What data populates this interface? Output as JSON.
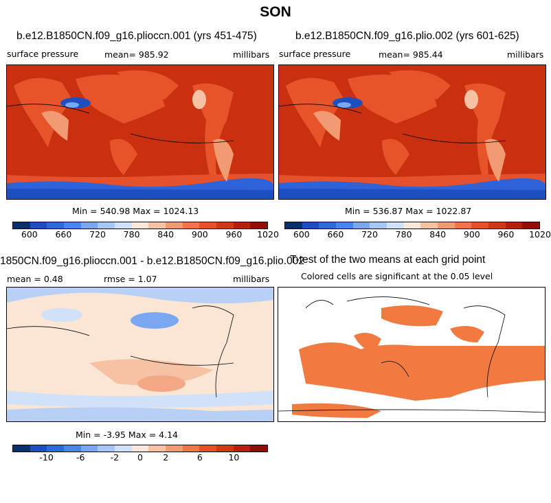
{
  "title": "SON",
  "panels": {
    "p1": {
      "title": "b.e12.B1850CN.f09_g16.plioccn.001 (yrs 451-475)",
      "left": "surface pressure",
      "center": "mean= 985.92",
      "right": "millibars",
      "stats": "Min = 540.98 Max = 1024.13"
    },
    "p2": {
      "title": "b.e12.B1850CN.f09_g16.plio.002 (yrs 601-625)",
      "left": "surface pressure",
      "center": "mean= 985.44",
      "right": "millibars",
      "stats": "Min = 536.87 Max = 1022.87"
    },
    "p3": {
      "title": "1850CN.f09_g16.plioccn.001 - b.e12.B1850CN.f09_g16.plio.002",
      "left": "mean =    0.48",
      "center": "rmse =    1.07",
      "right": "millibars",
      "stats": "Min =  -3.95 Max =   4.14"
    },
    "p4": {
      "title": "T-test of the two means at each grid point",
      "subtitle": "Colored cells are significant at the 0.05 level"
    }
  },
  "colorbar_abs": {
    "colors": [
      "#08306b",
      "#1d4fc0",
      "#2f6bd8",
      "#4a86e8",
      "#7aa8f0",
      "#a7c7f7",
      "#d0e1fa",
      "#fbe8dc",
      "#f7c1a3",
      "#f29a72",
      "#ee7649",
      "#e55325",
      "#cf3a14",
      "#b4220d",
      "#8c1006"
    ],
    "ticks": [
      "600",
      "660",
      "720",
      "780",
      "840",
      "900",
      "960",
      "1020"
    ]
  },
  "colorbar_diff": {
    "colors": [
      "#08306b",
      "#1d4fc0",
      "#2f6bd8",
      "#4a86e8",
      "#7aa8f0",
      "#a7c7f7",
      "#d0e1fa",
      "#fbe8dc",
      "#f7c1a3",
      "#f29a72",
      "#ee7649",
      "#e55325",
      "#cf3a14",
      "#b4220d",
      "#8c1006"
    ],
    "ticks": [
      "-10",
      "-6",
      "-2",
      "0",
      "2",
      "6",
      "10"
    ]
  },
  "colors": {
    "ocean_pressure": "#c8300f",
    "land_pressure": "#e8542a",
    "antarctic": "#2d62d8",
    "tibet": "#1d4fc0",
    "diff_base": "#fbe6d6",
    "diff_pos": "#f3a785",
    "diff_neg": "#b8d0f5",
    "signif": "#f07a40"
  }
}
